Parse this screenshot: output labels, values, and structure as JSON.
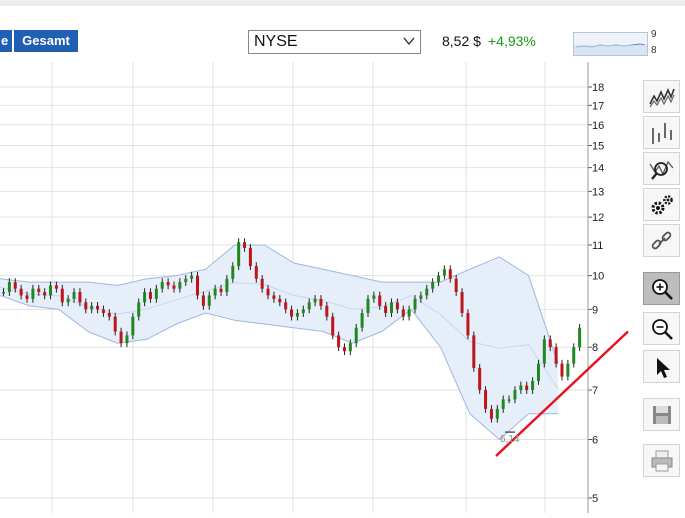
{
  "toolbar_top": {
    "prev_period_label": "e",
    "gesamt_label": "Gesamt",
    "exchange": "NYSE",
    "price": "8,52 $",
    "change": "+4,93%",
    "mini_ticks": [
      "9",
      "8"
    ]
  },
  "colors": {
    "accent": "#1f5fb4",
    "positive": "#1a9a1a",
    "candle_up": "#1e8a1e",
    "candle_down": "#c0141c",
    "band": "#e6eefa",
    "trend": "#e8101a"
  },
  "side_tools": [
    {
      "name": "line-chart-icon",
      "active": false
    },
    {
      "name": "ohlc-icon",
      "active": false
    },
    {
      "name": "indicator-search-icon",
      "active": false
    },
    {
      "name": "settings-icon",
      "active": false
    },
    {
      "name": "link-icon",
      "active": false
    },
    {
      "name": "zoom-in-icon",
      "active": true
    },
    {
      "name": "zoom-out-icon",
      "active": false
    },
    {
      "name": "pointer-icon",
      "active": false
    },
    {
      "name": "save-icon",
      "active": false
    },
    {
      "name": "print-icon",
      "active": false
    }
  ],
  "chart_data": {
    "type": "candlestick",
    "y_axis": {
      "scale": "log",
      "ticks": [
        18,
        17,
        16,
        15,
        14,
        13,
        12,
        11,
        10,
        9,
        8,
        7,
        6,
        5
      ],
      "range": [
        5,
        18.5
      ]
    },
    "grid": true,
    "low_label": "6,14",
    "close_series": [
      9.5,
      9.8,
      9.6,
      9.4,
      9.3,
      9.6,
      9.5,
      9.4,
      9.7,
      9.6,
      9.2,
      9.3,
      9.5,
      9.2,
      9.0,
      9.1,
      9.0,
      8.9,
      8.8,
      8.4,
      8.1,
      8.3,
      8.8,
      9.2,
      9.5,
      9.3,
      9.6,
      9.8,
      9.7,
      9.6,
      9.8,
      9.9,
      10.0,
      9.4,
      9.1,
      9.4,
      9.6,
      9.5,
      9.9,
      10.3,
      11.1,
      10.9,
      10.3,
      9.9,
      9.6,
      9.4,
      9.3,
      9.2,
      9.0,
      8.8,
      8.9,
      9.0,
      9.2,
      9.3,
      9.1,
      8.8,
      8.3,
      8.0,
      7.9,
      8.1,
      8.5,
      8.9,
      9.3,
      9.4,
      9.1,
      8.9,
      9.2,
      9.0,
      8.8,
      9.0,
      9.3,
      9.4,
      9.6,
      9.8,
      10.0,
      10.2,
      9.9,
      9.5,
      8.9,
      8.3,
      7.5,
      7.0,
      6.6,
      6.4,
      6.6,
      6.8,
      6.8,
      7.0,
      7.1,
      7.0,
      7.2,
      7.6,
      8.2,
      8.0,
      7.6,
      7.3,
      7.6,
      8.0,
      8.5
    ],
    "bollinger_upper": [
      9.9,
      9.8,
      9.8,
      9.8,
      9.7,
      9.9,
      10.0,
      10.2,
      11.0,
      11.0,
      10.4,
      10.2,
      10.0,
      9.8,
      9.8,
      9.8,
      10.2,
      10.6,
      10.0,
      7.6
    ],
    "bollinger_lower": [
      9.4,
      9.1,
      9.0,
      8.4,
      8.1,
      8.2,
      8.6,
      8.9,
      8.7,
      8.6,
      8.5,
      8.4,
      8.1,
      8.4,
      9.0,
      8.0,
      6.5,
      6.0,
      6.5,
      6.5
    ],
    "support_line": {
      "from": 5.7,
      "to": 8.4
    }
  }
}
